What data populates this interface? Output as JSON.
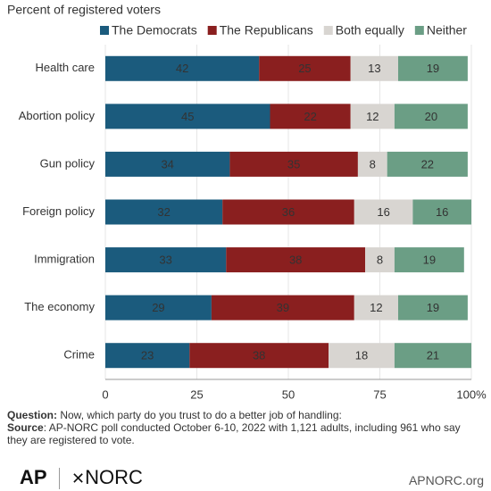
{
  "chart_data": {
    "type": "stacked_bar_horizontal",
    "subtitle": "Percent of registered voters",
    "categories": [
      "Health care",
      "Abortion policy",
      "Gun policy",
      "Foreign policy",
      "Immigration",
      "The economy",
      "Crime"
    ],
    "series": [
      {
        "name": "The Democrats",
        "color": "#1b5b7d",
        "values": [
          42,
          45,
          34,
          32,
          33,
          29,
          23
        ]
      },
      {
        "name": "The Republicans",
        "color": "#8a1f1f",
        "values": [
          25,
          22,
          35,
          36,
          38,
          39,
          38
        ]
      },
      {
        "name": "Both equally",
        "color": "#d8d5d1",
        "values": [
          13,
          12,
          8,
          16,
          8,
          12,
          18
        ]
      },
      {
        "name": "Neither",
        "color": "#6b9e85",
        "values": [
          19,
          20,
          22,
          16,
          19,
          19,
          21
        ]
      }
    ],
    "xlim": [
      0,
      100
    ],
    "xticks": [
      0,
      25,
      50,
      75,
      {
        "value": 100,
        "label": "100%"
      }
    ],
    "grid": true
  },
  "footer": {
    "question_label": "Question:",
    "question": "Now, which party do you trust to do a better job of handling:",
    "source_label": "Source",
    "source": ": AP-NORC poll conducted October 6-10, 2022 with 1,121 adults, including 961 who say they are registered to vote.",
    "logo_ap": "AP",
    "logo_norc": "NORC",
    "site": "APNORC.org"
  }
}
